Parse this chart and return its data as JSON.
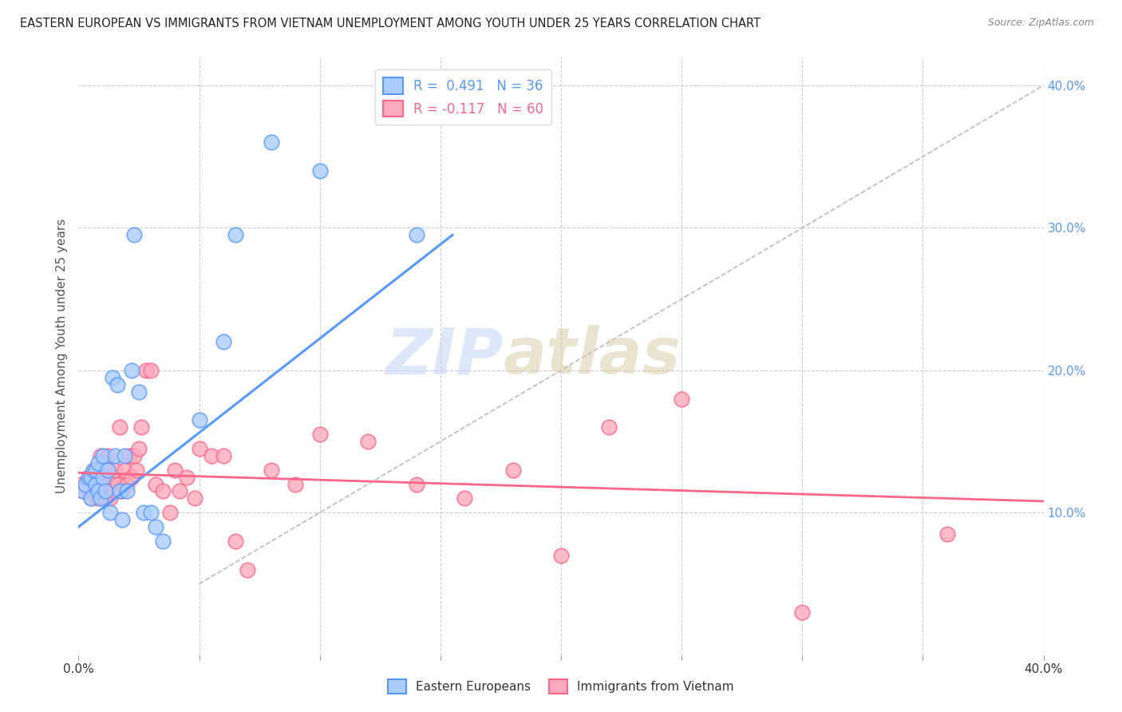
{
  "title": "EASTERN EUROPEAN VS IMMIGRANTS FROM VIETNAM UNEMPLOYMENT AMONG YOUTH UNDER 25 YEARS CORRELATION CHART",
  "source": "Source: ZipAtlas.com",
  "ylabel": "Unemployment Among Youth under 25 years",
  "xlim": [
    0,
    0.4
  ],
  "ylim": [
    0,
    0.42
  ],
  "yticks_right": [
    0.1,
    0.2,
    0.3,
    0.4
  ],
  "blue_R": 0.491,
  "blue_N": 36,
  "pink_R": -0.117,
  "pink_N": 60,
  "blue_color": "#5599FF",
  "blue_fill": "#AACCFF",
  "pink_color": "#FF6688",
  "pink_fill": "#FFAABB",
  "watermark_zip": "ZIP",
  "watermark_atlas": "atlas",
  "blue_scatter_x": [
    0.002,
    0.003,
    0.004,
    0.005,
    0.005,
    0.006,
    0.007,
    0.007,
    0.008,
    0.008,
    0.009,
    0.01,
    0.01,
    0.011,
    0.012,
    0.013,
    0.014,
    0.015,
    0.016,
    0.017,
    0.018,
    0.019,
    0.02,
    0.022,
    0.023,
    0.025,
    0.027,
    0.03,
    0.032,
    0.035,
    0.05,
    0.06,
    0.065,
    0.08,
    0.1,
    0.14
  ],
  "blue_scatter_y": [
    0.115,
    0.12,
    0.125,
    0.11,
    0.125,
    0.13,
    0.12,
    0.13,
    0.115,
    0.135,
    0.11,
    0.125,
    0.14,
    0.115,
    0.13,
    0.1,
    0.195,
    0.14,
    0.19,
    0.115,
    0.095,
    0.14,
    0.115,
    0.2,
    0.295,
    0.185,
    0.1,
    0.1,
    0.09,
    0.08,
    0.165,
    0.22,
    0.295,
    0.36,
    0.34,
    0.295
  ],
  "pink_scatter_x": [
    0.001,
    0.002,
    0.003,
    0.004,
    0.005,
    0.005,
    0.006,
    0.006,
    0.007,
    0.007,
    0.008,
    0.008,
    0.009,
    0.009,
    0.01,
    0.01,
    0.011,
    0.012,
    0.012,
    0.013,
    0.014,
    0.015,
    0.015,
    0.016,
    0.017,
    0.018,
    0.019,
    0.02,
    0.021,
    0.022,
    0.023,
    0.024,
    0.025,
    0.026,
    0.028,
    0.03,
    0.032,
    0.035,
    0.038,
    0.04,
    0.042,
    0.045,
    0.048,
    0.05,
    0.055,
    0.06,
    0.065,
    0.07,
    0.08,
    0.09,
    0.1,
    0.12,
    0.14,
    0.16,
    0.18,
    0.2,
    0.22,
    0.25,
    0.3,
    0.36
  ],
  "pink_scatter_y": [
    0.12,
    0.115,
    0.12,
    0.125,
    0.11,
    0.125,
    0.115,
    0.13,
    0.12,
    0.13,
    0.11,
    0.13,
    0.12,
    0.14,
    0.115,
    0.125,
    0.11,
    0.13,
    0.14,
    0.11,
    0.125,
    0.115,
    0.13,
    0.12,
    0.16,
    0.115,
    0.13,
    0.12,
    0.14,
    0.125,
    0.14,
    0.13,
    0.145,
    0.16,
    0.2,
    0.2,
    0.12,
    0.115,
    0.1,
    0.13,
    0.115,
    0.125,
    0.11,
    0.145,
    0.14,
    0.14,
    0.08,
    0.06,
    0.13,
    0.12,
    0.155,
    0.15,
    0.12,
    0.11,
    0.13,
    0.07,
    0.16,
    0.18,
    0.03,
    0.085
  ],
  "blue_line_x": [
    0.0,
    0.155
  ],
  "blue_line_y": [
    0.09,
    0.295
  ],
  "pink_line_x": [
    0.0,
    0.4
  ],
  "pink_line_y": [
    0.128,
    0.108
  ],
  "ref_line_x": [
    0.05,
    0.4
  ],
  "ref_line_y": [
    0.05,
    0.4
  ],
  "background_color": "#FFFFFF",
  "grid_color": "#CCCCCC",
  "title_color": "#222222",
  "axis_label_color": "#555555"
}
